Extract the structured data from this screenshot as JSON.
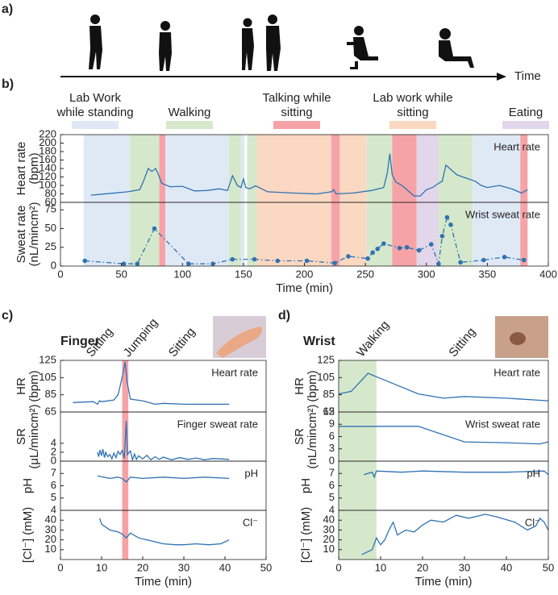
{
  "figure": {
    "panel_label": "a)",
    "timeline_label": "Time"
  },
  "chart_data": [
    {
      "type": "stacked-lines",
      "panel_label": "b)",
      "xlabel": "Time (min)",
      "xlim": [
        0,
        400
      ],
      "xticks": [
        0,
        50,
        100,
        150,
        200,
        250,
        300,
        350,
        400
      ],
      "legend": [
        {
          "name": [
            "Lab Work",
            "while standing"
          ],
          "color": "#dfe9f5"
        },
        {
          "name": [
            "Walking"
          ],
          "color": "#d5e8cb"
        },
        {
          "name": [
            "Talking while",
            "sitting"
          ],
          "color": "#f6a3a7"
        },
        {
          "name": [
            "Lab work while",
            "sitting"
          ],
          "color": "#fbd8c1"
        },
        {
          "name": [
            "Eating"
          ],
          "color": "#e2d6ea"
        }
      ],
      "regions": [
        {
          "x": [
            19,
            57
          ],
          "color": "#dfe9f5"
        },
        {
          "x": [
            57,
            81
          ],
          "color": "#d5e8cb"
        },
        {
          "x": [
            81,
            86
          ],
          "color": "#f6a3a7"
        },
        {
          "x": [
            86,
            138
          ],
          "color": "#dfe9f5"
        },
        {
          "x": [
            138,
            148
          ],
          "color": "#d5e8cb"
        },
        {
          "x": [
            148,
            151
          ],
          "color": "#dfe9f5"
        },
        {
          "x": [
            153,
            161
          ],
          "color": "#d5e8cb"
        },
        {
          "x": [
            161,
            222
          ],
          "color": "#fbd8c1"
        },
        {
          "x": [
            222,
            229
          ],
          "color": "#f6a3a7"
        },
        {
          "x": [
            229,
            251
          ],
          "color": "#fbd8c1"
        },
        {
          "x": [
            251,
            272
          ],
          "color": "#d5e8cb"
        },
        {
          "x": [
            272,
            292
          ],
          "color": "#f6a3a7"
        },
        {
          "x": [
            292,
            310
          ],
          "color": "#e2d6ea"
        },
        {
          "x": [
            310,
            338
          ],
          "color": "#d5e8cb"
        },
        {
          "x": [
            338,
            377
          ],
          "color": "#dfe9f5"
        },
        {
          "x": [
            377,
            383
          ],
          "color": "#f6a3a7"
        }
      ],
      "subplots": [
        {
          "ylabel": [
            "Heart rate",
            "(bpm)"
          ],
          "ylim": [
            60,
            220
          ],
          "yticks": [
            60,
            80,
            100,
            120,
            140,
            160,
            180,
            200,
            220
          ],
          "series": [
            {
              "name": "Heart rate",
              "color": "#2f72b3",
              "x": [
                25,
                55,
                65,
                68,
                70,
                72,
                75,
                78,
                80,
                83,
                90,
                100,
                110,
                120,
                130,
                137,
                141,
                145,
                148,
                150,
                152,
                155,
                160,
                170,
                190,
                210,
                222,
                224,
                226,
                240,
                255,
                265,
                268,
                270,
                272,
                275,
                280,
                290,
                295,
                300,
                305,
                310,
                313,
                316,
                320,
                325,
                330,
                340,
                345,
                350,
                360,
                370,
                378,
                383
              ],
              "values": [
                77,
                85,
                90,
                110,
                125,
                140,
                133,
                140,
                128,
                105,
                97,
                98,
                87,
                88,
                92,
                88,
                123,
                100,
                95,
                115,
                95,
                92,
                99,
                85,
                82,
                80,
                85,
                90,
                80,
                82,
                88,
                95,
                130,
                175,
                125,
                108,
                100,
                75,
                75,
                90,
                95,
                105,
                110,
                148,
                138,
                125,
                120,
                110,
                100,
                95,
                100,
                92,
                82,
                90
              ]
            }
          ]
        },
        {
          "ylabel": [
            "Sweat rate",
            "(nL/mincm²)"
          ],
          "ylim": [
            0,
            85
          ],
          "yticks": [
            0,
            25,
            50,
            75
          ],
          "series": [
            {
              "name": "Wrist sweat rate",
              "color": "#2f72b3",
              "linestyle": "dashdot",
              "markers": true,
              "x": [
                20,
                52,
                63,
                77,
                105,
                125,
                141,
                159,
                178,
                202,
                225,
                236,
                252,
                256,
                260,
                265,
                278,
                284,
                294,
                304,
                310,
                313,
                317,
                320,
                328,
                347,
                364,
                380
              ],
              "values": [
                7,
                3,
                3,
                50,
                3,
                3,
                9,
                9,
                7,
                7,
                4,
                13,
                10,
                18,
                23,
                30,
                24,
                25,
                21,
                29,
                3,
                40,
                65,
                55,
                5,
                8,
                12,
                8
              ]
            }
          ]
        }
      ]
    },
    {
      "type": "stacked-lines",
      "panel_label": "c)",
      "title": "Finger",
      "xlabel": "Time (min)",
      "xlim": [
        0,
        50
      ],
      "xticks": [
        0,
        10,
        20,
        30,
        40,
        50
      ],
      "annotations": [
        {
          "text": "Sitting",
          "x": 7
        },
        {
          "text": "Jumping",
          "x": 16
        },
        {
          "text": "Sitting",
          "x": 27
        }
      ],
      "regions": [
        {
          "x": [
            15,
            16.5
          ],
          "color": "#f6a3a7"
        }
      ],
      "subplots": [
        {
          "ylabel": [
            "HR",
            "(bpm)"
          ],
          "ylim": [
            65,
            125
          ],
          "yticks": [
            65,
            85,
            105,
            125
          ],
          "series": [
            {
              "name": "Heart rate",
              "color": "#2f72b3",
              "x": [
                3,
                8,
                9,
                9.5,
                10,
                13,
                14,
                15,
                15.7,
                16.2,
                17,
                20,
                23,
                25,
                30,
                35,
                41
              ],
              "values": [
                76,
                77,
                74,
                78,
                77,
                79,
                85,
                105,
                123,
                100,
                80,
                78,
                74,
                75,
                74,
                74,
                74
              ]
            }
          ]
        },
        {
          "ylabel": [
            "SR",
            "(μL/mincm²)"
          ],
          "ylim": [
            0,
            11
          ],
          "yticks": [
            0,
            2,
            4
          ],
          "series": [
            {
              "name": "Finger sweat rate",
              "color": "#2f72b3",
              "x": [
                9,
                9.3,
                9.6,
                10,
                10.3,
                10.7,
                11,
                11.5,
                12,
                12.5,
                13,
                13.5,
                14,
                14.5,
                15,
                15.5,
                16,
                16.3,
                17,
                17.5,
                18,
                18.5,
                19,
                20,
                21,
                22,
                23,
                24,
                25,
                27,
                29,
                31,
                33,
                35,
                37,
                39,
                41
              ],
              "values": [
                2,
                1,
                2.5,
                1.2,
                2.7,
                0.8,
                2,
                1,
                1.5,
                0.5,
                1.8,
                0.8,
                2.2,
                1.5,
                2.4,
                0.6,
                9,
                1.5,
                2.3,
                0.3,
                1.6,
                0.4,
                1.2,
                0.5,
                1.3,
                0.3,
                1,
                0.4,
                0.9,
                0.3,
                0.8,
                0.4,
                0.7,
                0.3,
                0.6,
                0.5,
                0.4
              ]
            }
          ]
        },
        {
          "ylabel": [
            "pH"
          ],
          "ylim": [
            4,
            8
          ],
          "yticks": [
            4,
            5,
            6,
            7
          ],
          "series": [
            {
              "name": "pH",
              "color": "#2f72b3",
              "x": [
                9,
                12,
                14,
                15,
                16,
                17,
                20,
                25,
                30,
                35,
                41
              ],
              "values": [
                6.8,
                6.6,
                6.7,
                6.6,
                6.3,
                6.7,
                6.6,
                6.7,
                6.6,
                6.7,
                6.6
              ]
            }
          ]
        },
        {
          "ylabel": [
            "[Cl⁻] (mM)"
          ],
          "ylim": [
            0,
            50
          ],
          "yticks": [
            10,
            20,
            30,
            40
          ],
          "series": [
            {
              "name": "Cl⁻",
              "color": "#2f72b3",
              "x": [
                9.5,
                10,
                12,
                14,
                15,
                16,
                17,
                19,
                21,
                23,
                25,
                28,
                30,
                33,
                36,
                39,
                41
              ],
              "values": [
                42,
                36,
                30,
                28,
                26,
                22,
                27,
                22,
                20,
                18,
                16,
                15,
                15,
                16,
                15,
                16,
                20
              ]
            }
          ]
        }
      ]
    },
    {
      "type": "stacked-lines",
      "panel_label": "d)",
      "title": "Wrist",
      "xlabel": "Time (min)",
      "xlim": [
        0,
        50
      ],
      "xticks": [
        0,
        10,
        20,
        30,
        40,
        50
      ],
      "annotations": [
        {
          "text": "Walking",
          "x": 5
        },
        {
          "text": "Sitting",
          "x": 27
        }
      ],
      "regions": [
        {
          "x": [
            0,
            9
          ],
          "color": "#d5e8cb"
        }
      ],
      "subplots": [
        {
          "ylabel": [
            "HR",
            "(bpm)"
          ],
          "ylim": [
            65,
            125
          ],
          "yticks": [
            65,
            85,
            105,
            125
          ],
          "series": [
            {
              "name": "Heart rate",
              "color": "#2f72b3",
              "x": [
                0,
                3,
                7,
                12,
                19,
                25,
                30,
                40,
                50
              ],
              "values": [
                86,
                89,
                110,
                100,
                86,
                81,
                83,
                81,
                78
              ]
            }
          ]
        },
        {
          "ylabel": [
            "SR",
            "(nL/mincm²)"
          ],
          "ylim": [
            0,
            12
          ],
          "yticks": [
            0,
            3,
            6,
            9,
            12
          ],
          "series": [
            {
              "name": "Wrist sweat rate",
              "color": "#2f72b3",
              "x": [
                0,
                19,
                30,
                40,
                48,
                50
              ],
              "values": [
                8.5,
                8.5,
                4.7,
                4.5,
                4.2,
                4.7
              ]
            }
          ]
        },
        {
          "ylabel": [
            "pH"
          ],
          "ylim": [
            4,
            8
          ],
          "yticks": [
            4,
            5,
            6,
            7
          ],
          "series": [
            {
              "name": "pH",
              "color": "#2f72b3",
              "x": [
                6,
                8,
                8.5,
                9,
                15,
                20,
                30,
                40,
                49,
                50
              ],
              "values": [
                6.9,
                7.1,
                6.7,
                7.2,
                7.1,
                7.2,
                7.1,
                7.1,
                7.2,
                6.9
              ]
            }
          ]
        },
        {
          "ylabel": [
            "[Cl⁻] (mM)"
          ],
          "ylim": [
            0,
            50
          ],
          "yticks": [
            10,
            20,
            30,
            40
          ],
          "series": [
            {
              "name": "Cl⁻",
              "color": "#2f72b3",
              "x": [
                5.5,
                7,
                8,
                9,
                10,
                11,
                12,
                13,
                14,
                16,
                18,
                20,
                22,
                25,
                28,
                31,
                35,
                38,
                42,
                45,
                47,
                48,
                49,
                50
              ],
              "values": [
                5,
                8,
                10,
                22,
                15,
                20,
                30,
                38,
                25,
                30,
                28,
                35,
                40,
                38,
                45,
                42,
                46,
                43,
                38,
                30,
                34,
                42,
                38,
                30
              ]
            }
          ]
        }
      ]
    }
  ]
}
